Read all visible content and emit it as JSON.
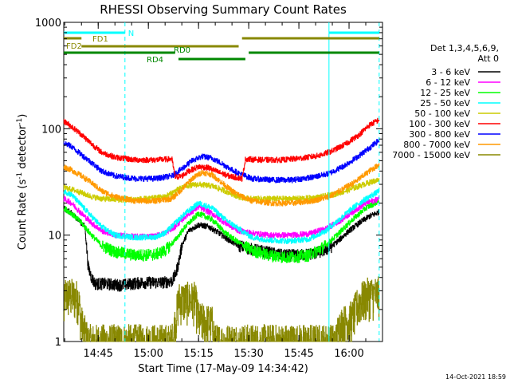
{
  "chart_data": {
    "type": "line",
    "title": "RHESSI Observing Summary Count Rates",
    "xlabel": "Start Time (17-May-09 14:34:42)",
    "ylabel": "Count Rate (s",
    "ylabel_sup1": "-1",
    "ylabel_mid": " detector",
    "ylabel_sup2": "-1",
    "ylabel_end": ")",
    "timestamp": "14-Oct-2021 18:59",
    "y_scale": "log",
    "ylim": [
      1,
      1000
    ],
    "xlim": [
      "14:34:42",
      "16:10:00"
    ],
    "x_ticks": [
      "14:45",
      "15:00",
      "15:15",
      "15:30",
      "15:45",
      "16:00"
    ],
    "y_ticks": [
      "1",
      "10",
      "100",
      "1000"
    ],
    "legend_position": "right",
    "legend_header": [
      "Det 1,3,4,5,6,9,",
      "Att 0"
    ],
    "series": [
      {
        "name": "3 - 6 keV",
        "color": "#000000",
        "profile": [
          [
            "14:34:42",
            18
          ],
          [
            "14:37",
            16
          ],
          [
            "14:39",
            14
          ],
          [
            "14:41",
            12
          ],
          [
            "14:42",
            5
          ],
          [
            "14:43",
            4
          ],
          [
            "14:44",
            3.5
          ],
          [
            "14:47",
            3.5
          ],
          [
            "14:52",
            3.4
          ],
          [
            "14:58",
            3.6
          ],
          [
            "15:04",
            3.6
          ],
          [
            "15:07",
            3.7
          ],
          [
            "15:08",
            4.2
          ],
          [
            "15:09",
            5.5
          ],
          [
            "15:10",
            8
          ],
          [
            "15:12",
            11
          ],
          [
            "15:15",
            12.5
          ],
          [
            "15:18",
            12
          ],
          [
            "15:21",
            10.5
          ],
          [
            "15:24",
            9
          ],
          [
            "15:27",
            8
          ],
          [
            "15:30",
            7.5
          ],
          [
            "15:35",
            7
          ],
          [
            "15:40",
            6.5
          ],
          [
            "15:45",
            6.5
          ],
          [
            "15:50",
            6.8
          ],
          [
            "15:54",
            7.5
          ],
          [
            "15:57",
            9
          ],
          [
            "16:00",
            11
          ],
          [
            "16:03",
            13
          ],
          [
            "16:06",
            15
          ],
          [
            "16:09",
            16.5
          ]
        ]
      },
      {
        "name": "6 - 12 keV",
        "color": "#ff00ff",
        "profile": [
          [
            "14:34:42",
            22
          ],
          [
            "14:37",
            20
          ],
          [
            "14:40",
            16
          ],
          [
            "14:43",
            13
          ],
          [
            "14:46",
            11
          ],
          [
            "14:50",
            10
          ],
          [
            "14:56",
            9.7
          ],
          [
            "15:02",
            9.8
          ],
          [
            "15:05",
            10.5
          ],
          [
            "15:08",
            12
          ],
          [
            "15:11",
            15
          ],
          [
            "15:15",
            18.5
          ],
          [
            "15:19",
            16
          ],
          [
            "15:23",
            13
          ],
          [
            "15:27",
            11
          ],
          [
            "15:31",
            10.5
          ],
          [
            "15:36",
            10
          ],
          [
            "15:42",
            10
          ],
          [
            "15:48",
            10.3
          ],
          [
            "15:53",
            11.5
          ],
          [
            "15:57",
            13.5
          ],
          [
            "16:01",
            16.5
          ],
          [
            "16:05",
            20
          ],
          [
            "16:09",
            22
          ]
        ]
      },
      {
        "name": "12 - 25 keV",
        "color": "#00ff00",
        "profile": [
          [
            "14:34:42",
            18
          ],
          [
            "14:37",
            16
          ],
          [
            "14:40",
            13
          ],
          [
            "14:43",
            10
          ],
          [
            "14:46",
            8
          ],
          [
            "14:50",
            7
          ],
          [
            "14:56",
            6.5
          ],
          [
            "15:02",
            6.6
          ],
          [
            "15:05",
            7.2
          ],
          [
            "15:08",
            9
          ],
          [
            "15:11",
            12
          ],
          [
            "15:15",
            16
          ],
          [
            "15:19",
            14
          ],
          [
            "15:23",
            10.5
          ],
          [
            "15:27",
            8.5
          ],
          [
            "15:31",
            7.2
          ],
          [
            "15:36",
            6.5
          ],
          [
            "15:42",
            6.2
          ],
          [
            "15:48",
            6.5
          ],
          [
            "15:53",
            8
          ],
          [
            "15:57",
            10.5
          ],
          [
            "16:01",
            14
          ],
          [
            "16:05",
            18
          ],
          [
            "16:09",
            21
          ]
        ]
      },
      {
        "name": "25 - 50 keV",
        "color": "#00ffff",
        "profile": [
          [
            "14:34:42",
            26
          ],
          [
            "14:37",
            24
          ],
          [
            "14:40",
            19
          ],
          [
            "14:43",
            15
          ],
          [
            "14:46",
            12
          ],
          [
            "14:50",
            10
          ],
          [
            "14:56",
            9.5
          ],
          [
            "15:02",
            9.6
          ],
          [
            "15:05",
            10.5
          ],
          [
            "15:08",
            13
          ],
          [
            "15:11",
            16
          ],
          [
            "15:15",
            20
          ],
          [
            "15:19",
            18
          ],
          [
            "15:23",
            14
          ],
          [
            "15:27",
            11.5
          ],
          [
            "15:31",
            9.5
          ],
          [
            "15:36",
            9
          ],
          [
            "15:42",
            8.8
          ],
          [
            "15:48",
            9.2
          ],
          [
            "15:53",
            11
          ],
          [
            "15:57",
            14
          ],
          [
            "16:01",
            18
          ],
          [
            "16:05",
            22
          ],
          [
            "16:09",
            26
          ]
        ]
      },
      {
        "name": "50 - 100 keV",
        "color": "#cccc00",
        "profile": [
          [
            "14:34:42",
            28
          ],
          [
            "14:37",
            27
          ],
          [
            "14:40",
            25
          ],
          [
            "14:43",
            23
          ],
          [
            "14:46",
            22
          ],
          [
            "14:52",
            21.5
          ],
          [
            "15:00",
            22
          ],
          [
            "15:05",
            23
          ],
          [
            "15:08",
            26
          ],
          [
            "15:11",
            29
          ],
          [
            "15:15",
            30
          ],
          [
            "15:19",
            29
          ],
          [
            "15:23",
            26
          ],
          [
            "15:27",
            23
          ],
          [
            "15:30",
            22
          ],
          [
            "15:36",
            22
          ],
          [
            "15:44",
            22
          ],
          [
            "15:50",
            22.5
          ],
          [
            "15:55",
            24
          ],
          [
            "15:59",
            26
          ],
          [
            "16:03",
            29
          ],
          [
            "16:07",
            32
          ],
          [
            "16:09",
            33
          ]
        ]
      },
      {
        "name": "100 - 300 keV",
        "color": "#ff0000",
        "profile": [
          [
            "14:34:42",
            118
          ],
          [
            "14:37",
            105
          ],
          [
            "14:40",
            88
          ],
          [
            "14:43",
            72
          ],
          [
            "14:46",
            60
          ],
          [
            "14:50",
            54
          ],
          [
            "14:56",
            51
          ],
          [
            "15:02",
            51
          ],
          [
            "15:07",
            52
          ],
          [
            "15:08",
            35
          ],
          [
            "15:10",
            36
          ],
          [
            "15:12",
            40
          ],
          [
            "15:15",
            44
          ],
          [
            "15:18",
            43
          ],
          [
            "15:21",
            39
          ],
          [
            "15:24",
            36
          ],
          [
            "15:28",
            34
          ],
          [
            "15:29",
            52
          ],
          [
            "15:34",
            51
          ],
          [
            "15:40",
            51
          ],
          [
            "15:46",
            53
          ],
          [
            "15:51",
            56
          ],
          [
            "15:55",
            62
          ],
          [
            "15:59",
            72
          ],
          [
            "16:03",
            88
          ],
          [
            "16:06",
            108
          ],
          [
            "16:09",
            122
          ]
        ]
      },
      {
        "name": "300 - 800 keV",
        "color": "#0000ff",
        "profile": [
          [
            "14:34:42",
            74
          ],
          [
            "14:37",
            68
          ],
          [
            "14:40",
            57
          ],
          [
            "14:43",
            48
          ],
          [
            "14:46",
            40
          ],
          [
            "14:50",
            36
          ],
          [
            "14:56",
            34
          ],
          [
            "15:02",
            34
          ],
          [
            "15:07",
            36
          ],
          [
            "15:10",
            42
          ],
          [
            "15:13",
            50
          ],
          [
            "15:16",
            55
          ],
          [
            "15:19",
            53
          ],
          [
            "15:22",
            47
          ],
          [
            "15:25",
            41
          ],
          [
            "15:28",
            37
          ],
          [
            "15:31",
            34
          ],
          [
            "15:37",
            33
          ],
          [
            "15:43",
            33
          ],
          [
            "15:49",
            35
          ],
          [
            "15:54",
            38
          ],
          [
            "15:58",
            44
          ],
          [
            "16:02",
            53
          ],
          [
            "16:06",
            66
          ],
          [
            "16:09",
            78
          ]
        ]
      },
      {
        "name": "800 - 7000 keV",
        "color": "#ff9900",
        "profile": [
          [
            "14:34:42",
            44
          ],
          [
            "14:37",
            41
          ],
          [
            "14:40",
            36
          ],
          [
            "14:43",
            31
          ],
          [
            "14:46",
            26
          ],
          [
            "14:50",
            23
          ],
          [
            "14:56",
            21
          ],
          [
            "15:02",
            21
          ],
          [
            "15:07",
            22
          ],
          [
            "15:10",
            27
          ],
          [
            "15:13",
            34
          ],
          [
            "15:16",
            39
          ],
          [
            "15:19",
            37
          ],
          [
            "15:22",
            31
          ],
          [
            "15:25",
            26
          ],
          [
            "15:28",
            23
          ],
          [
            "15:31",
            21
          ],
          [
            "15:37",
            20
          ],
          [
            "15:43",
            20
          ],
          [
            "15:49",
            21
          ],
          [
            "15:54",
            23
          ],
          [
            "15:58",
            27
          ],
          [
            "16:02",
            32
          ],
          [
            "16:06",
            40
          ],
          [
            "16:09",
            46
          ]
        ]
      },
      {
        "name": "7000 - 15000 keV",
        "color": "#888800",
        "profile": [
          [
            "14:34:42",
            1.7
          ],
          [
            "14:35",
            2.8
          ],
          [
            "14:39",
            2.6
          ],
          [
            "14:40",
            1.5
          ],
          [
            "14:41",
            1.2
          ],
          [
            "14:42",
            1.0
          ],
          [
            "15:07",
            1.0
          ],
          [
            "15:08",
            1.5
          ],
          [
            "15:09",
            2.5
          ],
          [
            "15:14",
            2.5
          ],
          [
            "15:15",
            1.6
          ],
          [
            "15:19",
            1.5
          ],
          [
            "15:20",
            1.0
          ],
          [
            "15:56",
            1.0
          ],
          [
            "15:57",
            1.4
          ],
          [
            "16:01",
            1.7
          ],
          [
            "16:03",
            2.4
          ],
          [
            "16:06",
            2.8
          ],
          [
            "16:09",
            2.8
          ]
        ]
      }
    ],
    "attenuator_bars": [
      {
        "label": "N",
        "color": "#00ffff",
        "segments": [
          [
            "14:34:42",
            "14:53"
          ],
          [
            "15:54",
            "16:09"
          ]
        ]
      },
      {
        "label": "FD1",
        "color": "#888800",
        "segments": [
          [
            "14:34:42",
            "14:40"
          ],
          [
            "15:28",
            "16:09"
          ]
        ]
      },
      {
        "label": "FD2",
        "color": "#888800",
        "segments": [
          [
            "14:40",
            "15:27"
          ]
        ]
      },
      {
        "label": "RD0",
        "color": "#008800",
        "segments": [
          [
            "14:34:42",
            "15:08"
          ],
          [
            "15:30",
            "16:09"
          ]
        ]
      },
      {
        "label": "RD4",
        "color": "#008800",
        "segments": [
          [
            "15:09",
            "15:29"
          ]
        ]
      }
    ],
    "vertical_markers": [
      {
        "color": "#00ffff",
        "style": "dashed",
        "x": "14:53"
      },
      {
        "color": "#00ffff",
        "style": "solid",
        "x": "15:54"
      },
      {
        "color": "#00ffff",
        "style": "dashed",
        "x": "16:09"
      }
    ]
  }
}
